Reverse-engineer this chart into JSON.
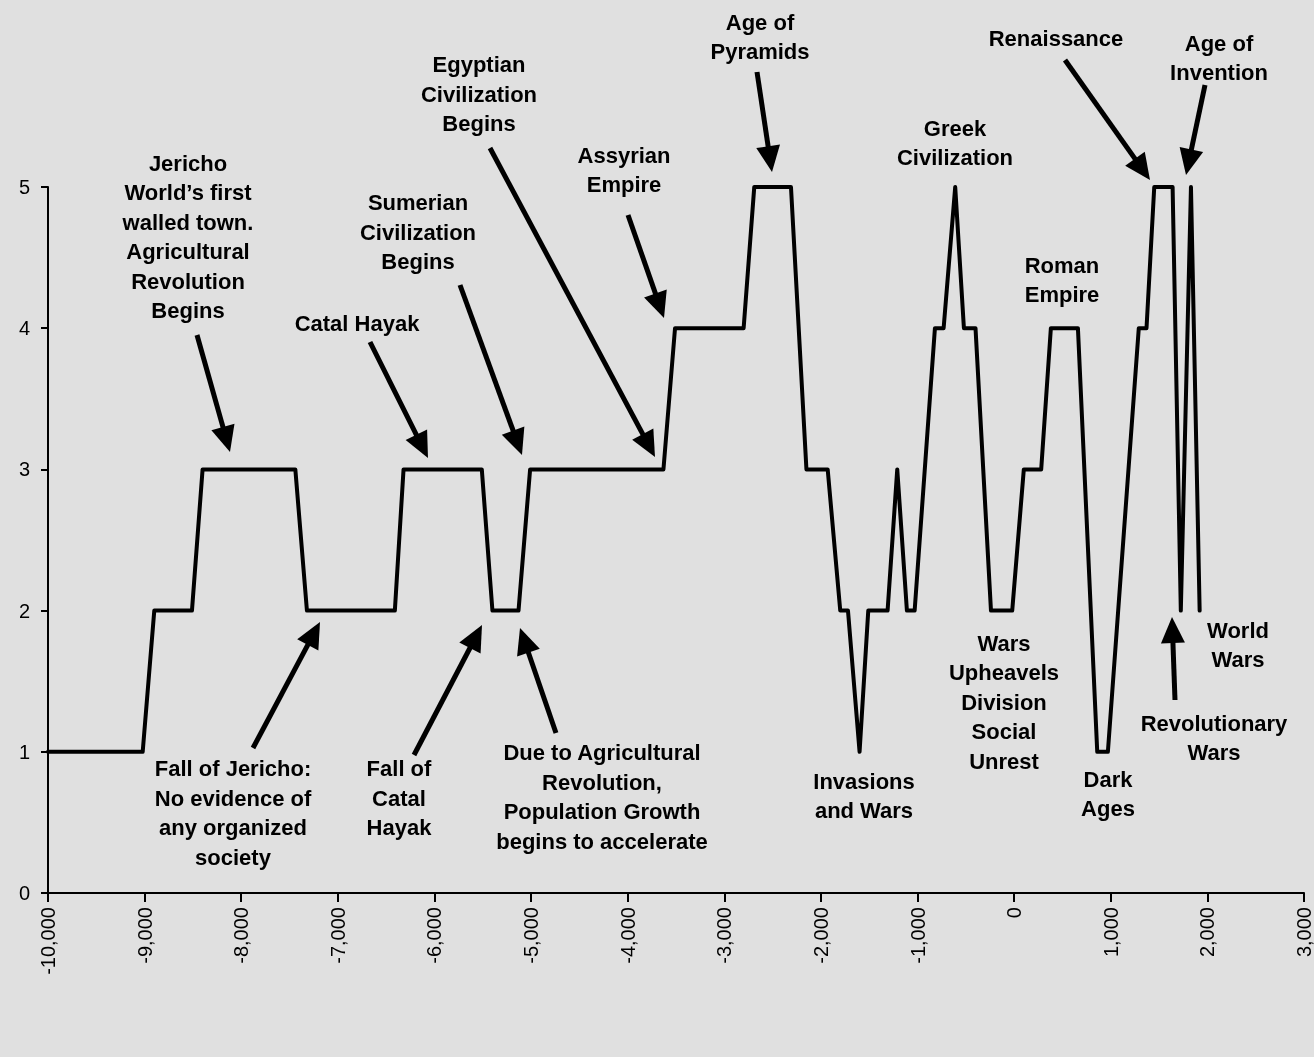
{
  "chart_data": {
    "type": "line",
    "color": "#000000",
    "marker": "none",
    "line_style": "solid",
    "x": [
      -10000,
      -9020,
      -8900,
      -8510,
      -8400,
      -7440,
      -7320,
      -6410,
      -6320,
      -5510,
      -5400,
      -5130,
      -5010,
      -3630,
      -3510,
      -2800,
      -2690,
      -2310,
      -2150,
      -1930,
      -1800,
      -1720,
      -1600,
      -1510,
      -1310,
      -1210,
      -1110,
      -1030,
      -820,
      -730,
      -610,
      -520,
      -400,
      -240,
      -20,
      100,
      280,
      380,
      660,
      860,
      970,
      1290,
      1370,
      1450,
      1550,
      1640,
      1725,
      1830,
      1920
    ],
    "values": [
      1,
      1,
      2,
      2,
      3,
      3,
      2,
      2,
      3,
      3,
      2,
      2,
      3,
      3,
      4,
      4,
      5,
      5,
      3,
      3,
      2,
      2,
      1,
      2,
      2,
      3,
      2,
      2,
      4,
      4,
      5,
      4,
      4,
      2,
      2,
      3,
      3,
      4,
      4,
      1,
      1,
      4,
      4,
      5,
      5,
      5,
      2,
      5,
      2
    ],
    "xlim": [
      -10000,
      3000
    ],
    "xticks": [
      {
        "value": -10000,
        "label": "-10,000"
      },
      {
        "value": -9000,
        "label": "-9,000"
      },
      {
        "value": -8000,
        "label": "-8,000"
      },
      {
        "value": -7000,
        "label": "-7,000"
      },
      {
        "value": -6000,
        "label": "-6,000"
      },
      {
        "value": -5000,
        "label": "-5,000"
      },
      {
        "value": -4000,
        "label": "-4,000"
      },
      {
        "value": -3000,
        "label": "-3,000"
      },
      {
        "value": -2000,
        "label": "-2,000"
      },
      {
        "value": -1000,
        "label": "-1,000"
      },
      0,
      {
        "value": 1000,
        "label": "1,000"
      },
      {
        "value": 2000,
        "label": "2,000"
      },
      {
        "value": 3000,
        "label": "3,000"
      }
    ],
    "ylim": [
      0,
      5
    ],
    "yticks": [
      0,
      1,
      2,
      3,
      4,
      5
    ],
    "annotations": [
      "Jericho\nWorld’s first\nwalled town.\nAgricultural\nRevolution\nBegins",
      "Catal Hayak",
      "Sumerian\nCivilization\nBegins",
      "Egyptian\nCivilization\nBegins",
      "Assyrian\nEmpire",
      "Age of\nPyramids",
      "Greek\nCivilization",
      "Renaissance",
      "Age of\nInvention",
      "Roman\nEmpire",
      "Fall of Jericho:\nNo evidence of\nany organized\nsociety",
      "Fall of\nCatal\nHayak",
      "Due to Agricultural\nRevolution,\nPopulation Growth\nbegins to accelerate",
      "Invasions\nand Wars",
      "Wars\nUpheavels\nDivision\nSocial\nUnrest",
      "Dark\nAges",
      "World\nWars",
      "Revolutionary\nWars"
    ]
  }
}
